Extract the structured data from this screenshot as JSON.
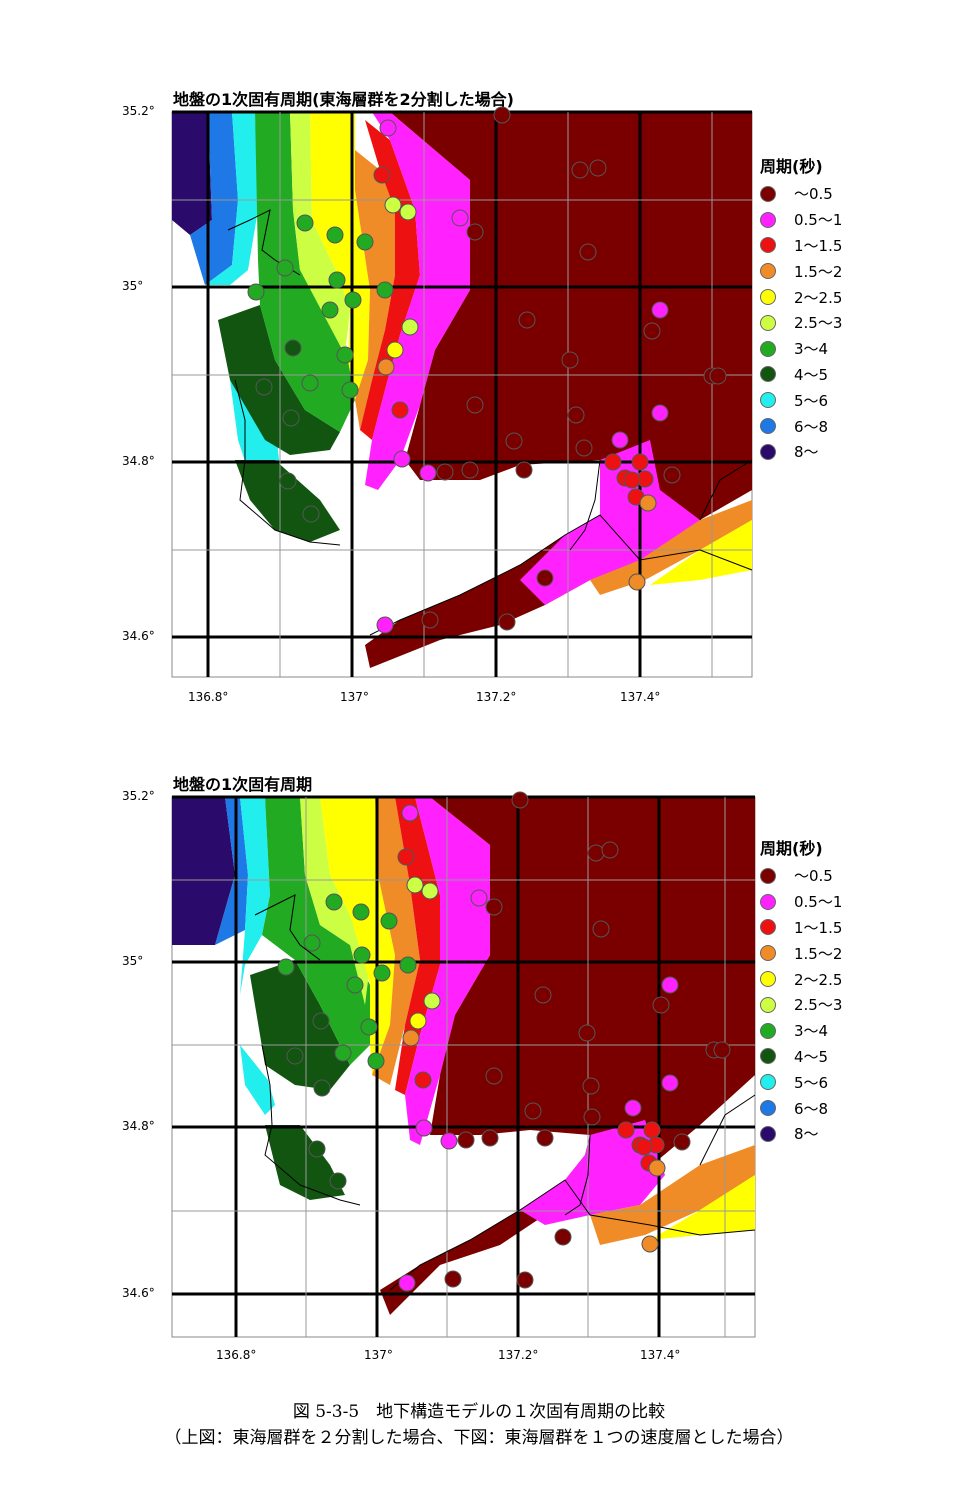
{
  "panels": [
    {
      "title": "地盤の1次固有周期(東海層群を2分割した場合)",
      "lat_labels": [
        "35.2°",
        "35°",
        "34.8°",
        "34.6°"
      ],
      "lon_labels": [
        "136.8°",
        "137°",
        "137.2°",
        "137.4°"
      ],
      "legend_title": "周期(秒)"
    },
    {
      "title": "地盤の1次固有周期",
      "lat_labels": [
        "35.2°",
        "35°",
        "34.8°",
        "34.6°"
      ],
      "lon_labels": [
        "136.8°",
        "137°",
        "137.2°",
        "137.4°"
      ],
      "legend_title": "周期(秒)"
    }
  ],
  "legend": [
    {
      "label": "～0.5",
      "color": "#7a0000"
    },
    {
      "label": "0.5～1",
      "color": "#ff22ff"
    },
    {
      "label": "1～1.5",
      "color": "#ee1111"
    },
    {
      "label": "1.5～2",
      "color": "#f08c28"
    },
    {
      "label": "2～2.5",
      "color": "#ffff00"
    },
    {
      "label": "2.5～3",
      "color": "#ccff44"
    },
    {
      "label": "3～4",
      "color": "#22aa22"
    },
    {
      "label": "4～5",
      "color": "#115511"
    },
    {
      "label": "5～6",
      "color": "#22eeee"
    },
    {
      "label": "6～8",
      "color": "#1e78e6"
    },
    {
      "label": "8～",
      "color": "#2a0a6a"
    }
  ],
  "caption": {
    "line1": "図 5-3-5　地下構造モデルの１次固有周期の比較",
    "line2": "（上図：東海層群を２分割した場合、下図：東海層群を１つの速度層とした場合）"
  }
}
